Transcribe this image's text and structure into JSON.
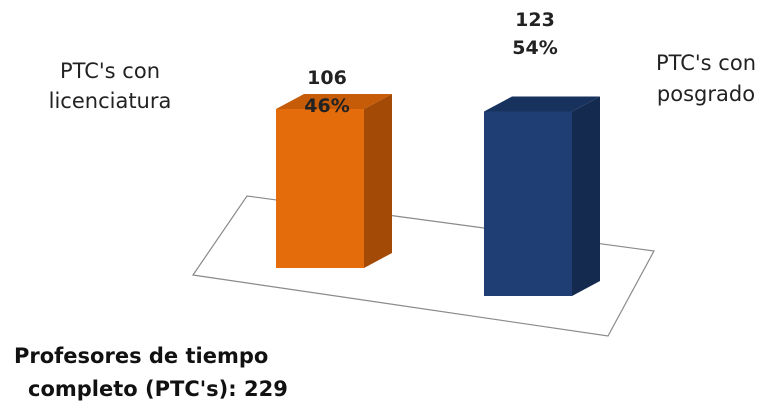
{
  "chart_data": {
    "type": "bar",
    "title_lines": [
      "Profesores de tiempo",
      "completo (PTC's): 229"
    ],
    "categories": [
      [
        "PTC's  con",
        "licenciatura"
      ],
      [
        "PTC's con",
        "posgrado"
      ]
    ],
    "values": [
      106,
      123
    ],
    "percent_labels": [
      "46%",
      "54%"
    ],
    "colors": {
      "bar1_front": "#E46C0A",
      "bar1_side": "#A34A06",
      "bar1_top": "#C65C08",
      "bar2_front": "#1F3E73",
      "bar2_side": "#142A4F",
      "bar2_top": "#18325E"
    }
  }
}
